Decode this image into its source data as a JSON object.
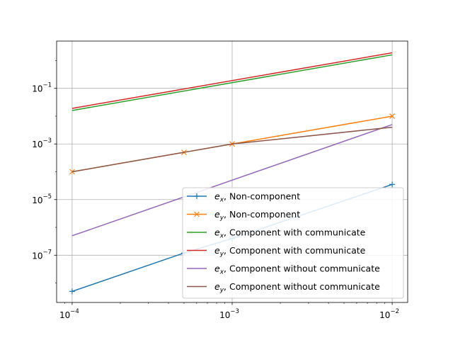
{
  "chart_data": {
    "type": "line",
    "x_scale": "log",
    "y_scale": "log",
    "xlim": [
      8e-05,
      0.0125
    ],
    "ylim": [
      2e-09,
      5
    ],
    "grid": true,
    "legend_location": "lower-right",
    "x_ticks": [
      {
        "value": 0.0001,
        "base": "10",
        "exp": "−4"
      },
      {
        "value": 0.001,
        "base": "10",
        "exp": "−3"
      },
      {
        "value": 0.01,
        "base": "10",
        "exp": "−2"
      }
    ],
    "y_ticks": [
      {
        "value": 1e-07,
        "base": "10",
        "exp": "−7"
      },
      {
        "value": 1e-05,
        "base": "10",
        "exp": "−5"
      },
      {
        "value": 0.001,
        "base": "10",
        "exp": "−3"
      },
      {
        "value": 0.1,
        "base": "10",
        "exp": "−1"
      }
    ],
    "series": [
      {
        "name": "e_x, Non-component",
        "var": "e",
        "sub": "x",
        "label_rest": ", Non-component",
        "color": "#1f77b4",
        "marker": "plus",
        "x": [
          0.0001,
          0.0005,
          0.001,
          0.01
        ],
        "y": [
          5e-09,
          1.2e-07,
          4e-07,
          3.5e-05
        ]
      },
      {
        "name": "e_y, Non-component",
        "var": "e",
        "sub": "y",
        "label_rest": ", Non-component",
        "color": "#ff7f0e",
        "marker": "x",
        "x": [
          0.0001,
          0.0005,
          0.001,
          0.01
        ],
        "y": [
          0.0001,
          0.0005,
          0.001,
          0.01
        ]
      },
      {
        "name": "e_x, Component with communicate",
        "var": "e",
        "sub": "x",
        "label_rest": ", Component with communicate",
        "color": "#2ca02c",
        "marker": "none",
        "x": [
          0.0001,
          0.01
        ],
        "y": [
          0.016,
          1.6
        ]
      },
      {
        "name": "e_y, Component with communicate",
        "var": "e",
        "sub": "y",
        "label_rest": ", Component with communicate",
        "color": "#d62728",
        "marker": "none",
        "x": [
          0.0001,
          0.01
        ],
        "y": [
          0.019,
          1.9
        ]
      },
      {
        "name": "e_x, Component without communicate",
        "var": "e",
        "sub": "x",
        "label_rest": ", Component without communicate",
        "color": "#9467bd",
        "marker": "none",
        "x": [
          0.0001,
          0.01
        ],
        "y": [
          5e-07,
          0.005
        ]
      },
      {
        "name": "e_y, Component without communicate",
        "var": "e",
        "sub": "y",
        "label_rest": ", Component without communicate",
        "color": "#8c564b",
        "marker": "none",
        "x": [
          0.0001,
          0.0005,
          0.001,
          0.01
        ],
        "y": [
          0.0001,
          0.0005,
          0.001,
          0.004
        ]
      }
    ]
  }
}
